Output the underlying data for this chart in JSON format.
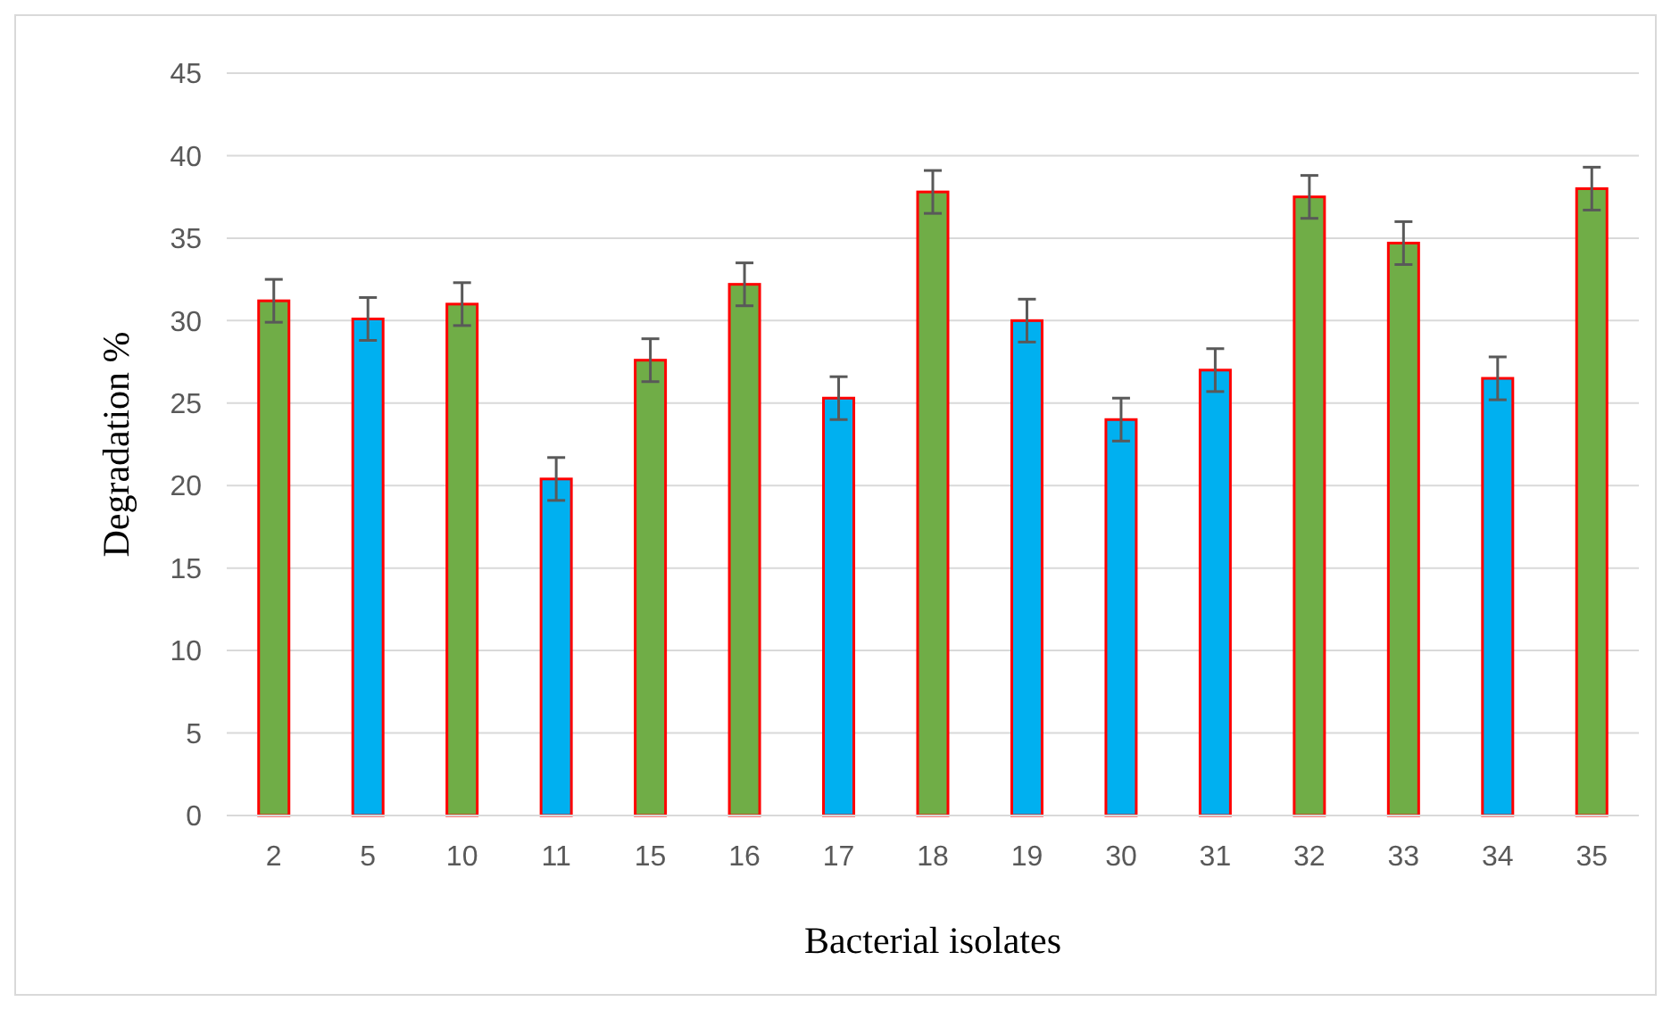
{
  "chart_data": {
    "type": "bar",
    "xlabel": "Bacterial isolates",
    "ylabel": "Degradation %",
    "categories": [
      "2",
      "5",
      "10",
      "11",
      "15",
      "16",
      "17",
      "18",
      "19",
      "30",
      "31",
      "32",
      "33",
      "34",
      "35"
    ],
    "values": [
      31.2,
      30.1,
      31.0,
      20.4,
      27.6,
      32.2,
      25.3,
      37.8,
      30.0,
      24.0,
      27.0,
      37.5,
      34.7,
      26.5,
      38.0
    ],
    "errors": [
      1.3,
      1.3,
      1.3,
      1.3,
      1.3,
      1.3,
      1.3,
      1.3,
      1.3,
      1.3,
      1.3,
      1.3,
      1.3,
      1.3,
      1.3
    ],
    "colors": [
      "#70ad47",
      "#00b0f0",
      "#70ad47",
      "#00b0f0",
      "#70ad47",
      "#70ad47",
      "#00b0f0",
      "#70ad47",
      "#00b0f0",
      "#00b0f0",
      "#00b0f0",
      "#70ad47",
      "#70ad47",
      "#00b0f0",
      "#70ad47"
    ],
    "ylim": [
      0,
      45
    ],
    "yticks": [
      0,
      5,
      10,
      15,
      20,
      25,
      30,
      35,
      40,
      45
    ],
    "grid": "y"
  }
}
